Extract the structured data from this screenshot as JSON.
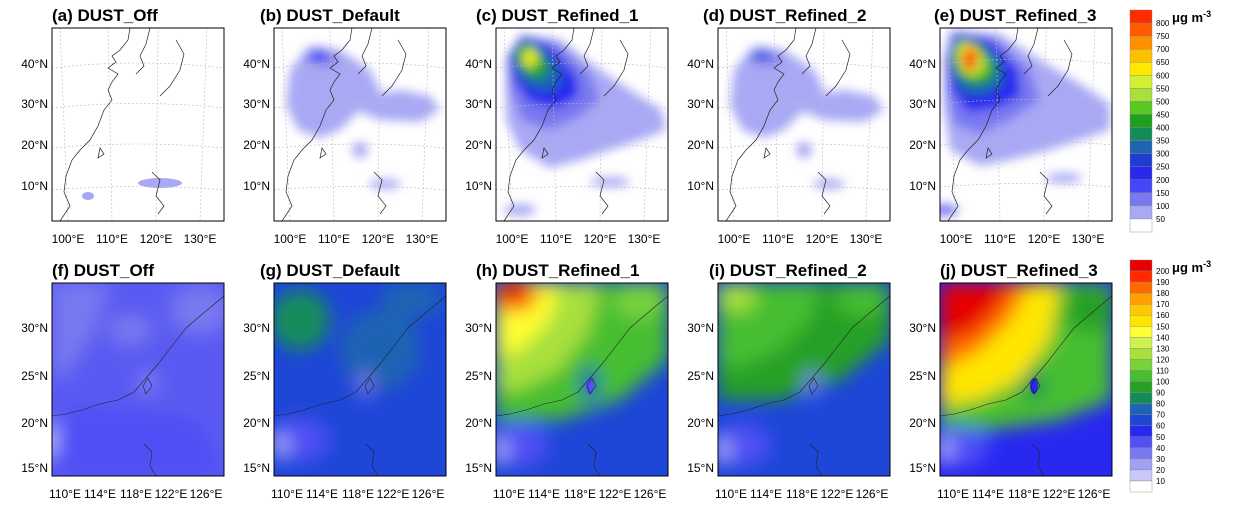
{
  "top_row": {
    "panels": [
      {
        "title": "(a) DUST_Off"
      },
      {
        "title": "(b) DUST_Default"
      },
      {
        "title": "(c) DUST_Refined_1"
      },
      {
        "title": "(d) DUST_Refined_2"
      },
      {
        "title": "(e) DUST_Refined_3"
      }
    ],
    "lat_labels": [
      "40°N",
      "30°N",
      "20°N",
      "10°N"
    ],
    "lon_labels": [
      "100°E",
      "110°E",
      "120°E",
      "130°E"
    ],
    "colorbar": {
      "unit": "μg m",
      "unit_exp": "-3",
      "levels": [
        "800",
        "750",
        "700",
        "650",
        "600",
        "550",
        "500",
        "450",
        "400",
        "350",
        "300",
        "250",
        "200",
        "150",
        "100",
        "50"
      ],
      "colors": [
        "#ff2a00",
        "#ff5a00",
        "#ff9100",
        "#ffc000",
        "#ffe900",
        "#d2f032",
        "#a8e03c",
        "#5ac823",
        "#1ea01e",
        "#148c5a",
        "#1e64b4",
        "#1e3cd2",
        "#2828f0",
        "#4646f5",
        "#7878f0",
        "#a8a8f5",
        "#ffffff"
      ]
    }
  },
  "bottom_row": {
    "panels": [
      {
        "title": "(f) DUST_Off"
      },
      {
        "title": "(g) DUST_Default"
      },
      {
        "title": "(h) DUST_Refined_1"
      },
      {
        "title": "(i) DUST_Refined_2"
      },
      {
        "title": "(j) DUST_Refined_3"
      }
    ],
    "lat_labels": [
      "30°N",
      "25°N",
      "20°N",
      "15°N"
    ],
    "lon_labels": [
      "110°E",
      "114°E",
      "118°E",
      "122°E",
      "126°E"
    ],
    "colorbar": {
      "unit": "μg m",
      "unit_exp": "-3",
      "levels": [
        "200",
        "190",
        "180",
        "170",
        "160",
        "150",
        "140",
        "130",
        "120",
        "110",
        "100",
        "90",
        "80",
        "70",
        "60",
        "50",
        "40",
        "30",
        "20",
        "10"
      ],
      "colors": [
        "#e60000",
        "#ff2a00",
        "#ff6a00",
        "#ffa000",
        "#ffc800",
        "#ffe600",
        "#ffff32",
        "#d2f050",
        "#a8e03c",
        "#78d23c",
        "#46be32",
        "#28a028",
        "#148c5a",
        "#1e64b4",
        "#1e46d7",
        "#2828f0",
        "#5050f5",
        "#7878f0",
        "#a0a0f5",
        "#c8c8fa",
        "#ffffff"
      ]
    }
  }
}
